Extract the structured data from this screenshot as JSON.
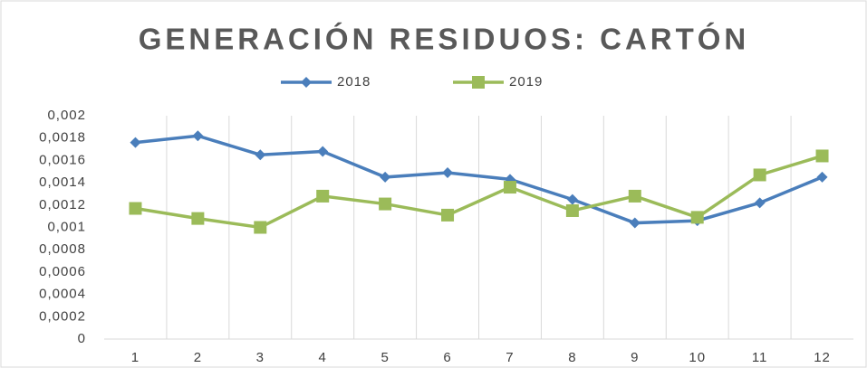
{
  "chart_data": {
    "type": "line",
    "title": "GENERACIÓN  RESIDUOS:  CARTÓN",
    "categories": [
      "1",
      "2",
      "3",
      "4",
      "5",
      "6",
      "7",
      "8",
      "9",
      "10",
      "11",
      "12"
    ],
    "series": [
      {
        "name": "2018",
        "color": "#4a7ebb",
        "marker": "diamond",
        "values": [
          0.00176,
          0.00182,
          0.00165,
          0.00168,
          0.00145,
          0.00149,
          0.00143,
          0.00125,
          0.00104,
          0.00106,
          0.00122,
          0.00145
        ]
      },
      {
        "name": "2019",
        "color": "#9bbb59",
        "marker": "square",
        "values": [
          0.00117,
          0.00108,
          0.001,
          0.00128,
          0.00121,
          0.00111,
          0.00136,
          0.00115,
          0.00128,
          0.00109,
          0.00147,
          0.00164
        ]
      }
    ],
    "ylim": [
      0,
      0.002
    ],
    "yticks": [
      0,
      {
        "value": 0.0002,
        "label": "0,0002"
      },
      {
        "value": 0.0004,
        "label": "0,0004"
      },
      {
        "value": 0.0006,
        "label": "0,0006"
      },
      {
        "value": 0.0008,
        "label": "0,0008"
      },
      {
        "value": 0.001,
        "label": "0,001"
      },
      {
        "value": 0.0012,
        "label": "0,0012"
      },
      {
        "value": 0.0014,
        "label": "0,0014"
      },
      {
        "value": 0.0016,
        "label": "0,0016"
      },
      {
        "value": 0.0018,
        "label": "0,0018"
      },
      {
        "value": 0.002,
        "label": "0,002"
      }
    ],
    "grid": "x",
    "legend": "top"
  }
}
